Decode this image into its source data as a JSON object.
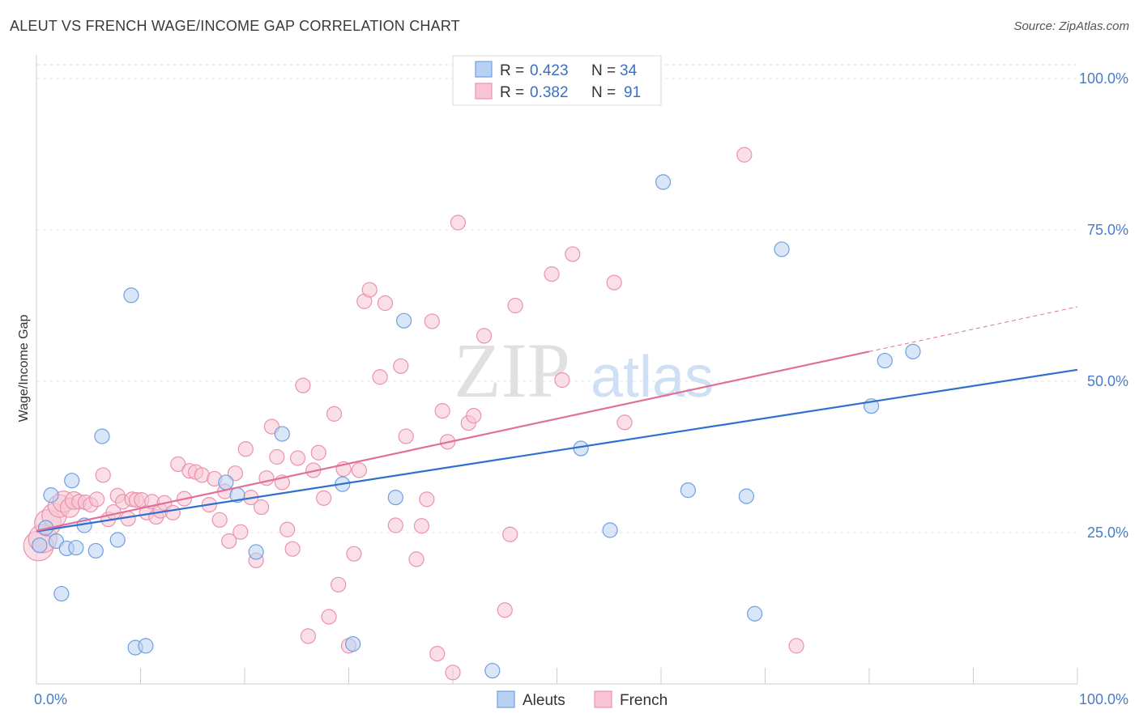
{
  "title": "ALEUT VS FRENCH WAGE/INCOME GAP CORRELATION CHART",
  "source": "Source: ZipAtlas.com",
  "watermark": {
    "zip": "ZIP",
    "atlas": "atlas"
  },
  "colors": {
    "aleut_fill": "#b8d1f3",
    "aleut_stroke": "#6f9fe0",
    "aleut_line": "#2f6fd0",
    "french_fill": "#f8c4d4",
    "french_stroke": "#ea92ae",
    "french_line": "#e0709a",
    "tick": "#4a7bc8"
  },
  "legend": {
    "rows": [
      {
        "r_label": "R =",
        "r_value": "0.423",
        "n_label": "N =",
        "n_value": "34"
      },
      {
        "r_label": "R =",
        "r_value": "0.382",
        "n_label": "N =",
        "n_value": "91"
      }
    ]
  },
  "chart_data": {
    "type": "scatter",
    "title": "ALEUT VS FRENCH WAGE/INCOME GAP CORRELATION CHART",
    "xlabel": "",
    "ylabel": "Wage/Income Gap",
    "xlim": [
      0,
      100
    ],
    "ylim": [
      0,
      100
    ],
    "x_ticks": [
      "0.0%",
      "100.0%"
    ],
    "y_ticks": [
      {
        "value": 25,
        "label": "25.0%"
      },
      {
        "value": 50,
        "label": "50.0%"
      },
      {
        "value": 75,
        "label": "75.0%"
      },
      {
        "value": 100,
        "label": "100.0%"
      }
    ],
    "grid": true,
    "legend_position": "top-center",
    "series": [
      {
        "name": "Aleuts",
        "r": 0.423,
        "n": 34,
        "trend": {
          "x": [
            0,
            100
          ],
          "y": [
            25.2,
            51.9
          ]
        },
        "points": [
          [
            0.3,
            22.9
          ],
          [
            0.9,
            25.8
          ],
          [
            1.4,
            31.2
          ],
          [
            1.9,
            23.6
          ],
          [
            2.4,
            14.9
          ],
          [
            2.9,
            22.4
          ],
          [
            3.4,
            33.6
          ],
          [
            3.8,
            22.5
          ],
          [
            4.6,
            26.2
          ],
          [
            5.7,
            22.0
          ],
          [
            6.3,
            40.9
          ],
          [
            7.8,
            23.8
          ],
          [
            9.1,
            64.2
          ],
          [
            9.5,
            6.0
          ],
          [
            10.5,
            6.3
          ],
          [
            18.2,
            33.3
          ],
          [
            19.3,
            31.2
          ],
          [
            21.1,
            21.8
          ],
          [
            23.6,
            41.3
          ],
          [
            29.4,
            33.0
          ],
          [
            30.4,
            6.6
          ],
          [
            34.5,
            30.8
          ],
          [
            35.3,
            60.0
          ],
          [
            43.8,
            2.2
          ],
          [
            52.3,
            38.9
          ],
          [
            55.1,
            25.4
          ],
          [
            60.2,
            82.9
          ],
          [
            62.6,
            32.0
          ],
          [
            68.2,
            31.0
          ],
          [
            69.0,
            11.6
          ],
          [
            71.6,
            71.8
          ],
          [
            80.2,
            45.9
          ],
          [
            81.5,
            53.4
          ],
          [
            84.2,
            54.9
          ]
        ]
      },
      {
        "name": "French",
        "r": 0.382,
        "n": 91,
        "trend": {
          "x": [
            0,
            80
          ],
          "y": [
            25.3,
            54.9
          ]
        },
        "trend_extension": {
          "x": [
            80,
            100
          ],
          "y": [
            54.9,
            62.3
          ]
        },
        "points": [
          [
            0.2,
            22.8
          ],
          [
            0.6,
            24.0
          ],
          [
            1.1,
            26.6
          ],
          [
            1.7,
            27.8
          ],
          [
            2.2,
            29.4
          ],
          [
            2.6,
            30.1
          ],
          [
            3.2,
            29.1
          ],
          [
            3.6,
            30.3
          ],
          [
            4.1,
            30.1
          ],
          [
            4.7,
            30.0
          ],
          [
            5.2,
            29.6
          ],
          [
            5.8,
            30.5
          ],
          [
            6.4,
            34.5
          ],
          [
            6.9,
            27.2
          ],
          [
            7.4,
            28.4
          ],
          [
            7.8,
            31.1
          ],
          [
            8.3,
            30.1
          ],
          [
            8.8,
            27.3
          ],
          [
            9.2,
            30.5
          ],
          [
            9.6,
            30.4
          ],
          [
            10.1,
            30.4
          ],
          [
            10.6,
            28.3
          ],
          [
            11.1,
            30.1
          ],
          [
            11.5,
            27.6
          ],
          [
            11.9,
            28.6
          ],
          [
            12.3,
            29.9
          ],
          [
            13.1,
            28.3
          ],
          [
            13.6,
            36.3
          ],
          [
            14.2,
            30.6
          ],
          [
            14.7,
            35.2
          ],
          [
            15.3,
            35.0
          ],
          [
            15.9,
            34.5
          ],
          [
            16.6,
            29.6
          ],
          [
            17.1,
            33.9
          ],
          [
            17.6,
            27.1
          ],
          [
            18.1,
            31.8
          ],
          [
            18.5,
            23.6
          ],
          [
            19.1,
            34.8
          ],
          [
            19.6,
            25.1
          ],
          [
            20.1,
            38.8
          ],
          [
            20.6,
            30.8
          ],
          [
            21.1,
            20.4
          ],
          [
            21.6,
            29.2
          ],
          [
            22.1,
            34.0
          ],
          [
            22.6,
            42.5
          ],
          [
            23.1,
            37.5
          ],
          [
            23.6,
            33.3
          ],
          [
            24.1,
            25.5
          ],
          [
            24.6,
            22.3
          ],
          [
            25.1,
            37.3
          ],
          [
            25.6,
            49.3
          ],
          [
            26.1,
            7.9
          ],
          [
            26.6,
            35.3
          ],
          [
            27.1,
            38.2
          ],
          [
            27.6,
            30.7
          ],
          [
            28.1,
            11.1
          ],
          [
            28.6,
            44.6
          ],
          [
            29.0,
            16.4
          ],
          [
            29.5,
            35.5
          ],
          [
            30.0,
            6.3
          ],
          [
            30.5,
            21.5
          ],
          [
            31.0,
            35.3
          ],
          [
            31.5,
            63.2
          ],
          [
            32.0,
            65.1
          ],
          [
            33.0,
            50.7
          ],
          [
            33.5,
            62.9
          ],
          [
            34.5,
            26.2
          ],
          [
            35.0,
            52.5
          ],
          [
            35.5,
            40.9
          ],
          [
            36.5,
            20.6
          ],
          [
            37.0,
            26.1
          ],
          [
            37.5,
            30.5
          ],
          [
            38.0,
            59.9
          ],
          [
            38.5,
            5.0
          ],
          [
            39.0,
            45.1
          ],
          [
            39.5,
            40.0
          ],
          [
            40.0,
            1.9
          ],
          [
            40.5,
            76.2
          ],
          [
            41.5,
            43.1
          ],
          [
            42.0,
            44.3
          ],
          [
            43.0,
            57.5
          ],
          [
            45.0,
            12.2
          ],
          [
            45.5,
            24.7
          ],
          [
            46.0,
            62.5
          ],
          [
            49.5,
            67.7
          ],
          [
            50.5,
            50.2
          ],
          [
            51.5,
            71.0
          ],
          [
            55.5,
            66.3
          ],
          [
            56.5,
            43.2
          ],
          [
            68.0,
            87.4
          ],
          [
            73.0,
            6.3
          ]
        ]
      }
    ]
  }
}
